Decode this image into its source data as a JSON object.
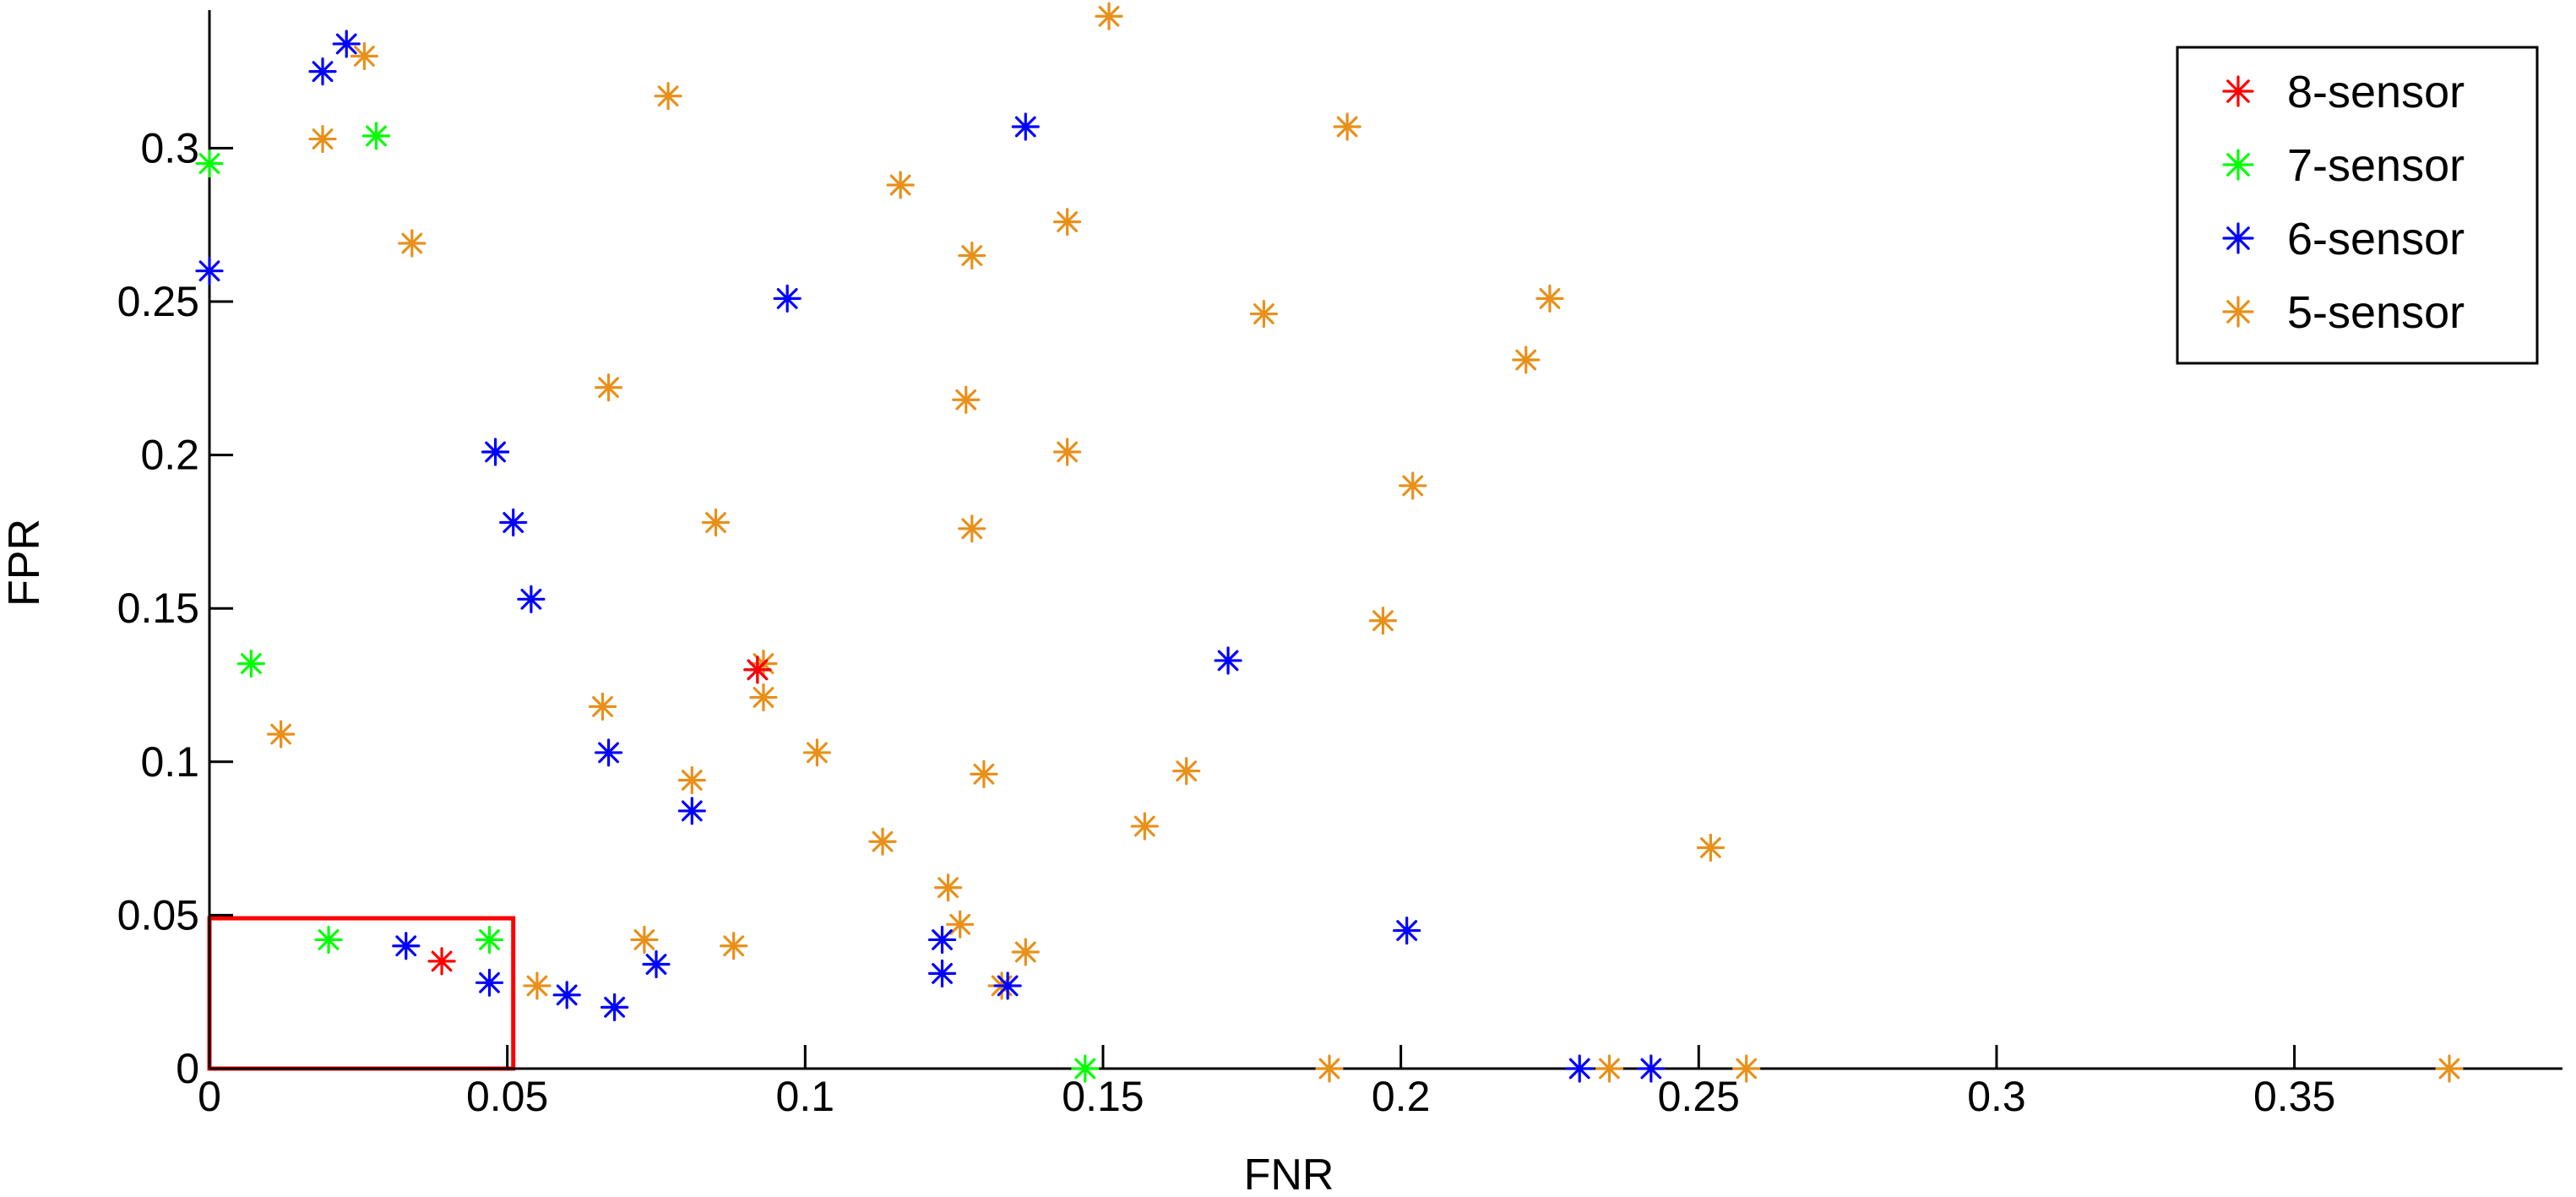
{
  "chart_data": {
    "type": "scatter",
    "title": "",
    "xlabel": "FNR",
    "ylabel": "FPR",
    "xlim": [
      0,
      0.395
    ],
    "ylim": [
      0,
      0.345
    ],
    "xticks": [
      0,
      0.05,
      0.1,
      0.15,
      0.2,
      0.25,
      0.3,
      0.35
    ],
    "xtick_labels": [
      "0",
      "0.05",
      "0.1",
      "0.15",
      "0.2",
      "0.25",
      "0.3",
      "0.35"
    ],
    "yticks": [
      0,
      0.05,
      0.1,
      0.15,
      0.2,
      0.25,
      0.3
    ],
    "ytick_labels": [
      "0",
      "0.05",
      "0.1",
      "0.15",
      "0.2",
      "0.25",
      "0.3"
    ],
    "grid": false,
    "legend_position": "top-right",
    "marker": "asterisk",
    "highlight_box": {
      "x": [
        0,
        0.051
      ],
      "y": [
        0,
        0.049
      ],
      "color": "#ff0000"
    },
    "series": [
      {
        "name": "8-sensor",
        "color": "#ff0000",
        "points": [
          [
            0.039,
            0.035
          ],
          [
            0.092,
            0.13
          ]
        ]
      },
      {
        "name": "7-sensor",
        "color": "#00ff00",
        "points": [
          [
            0.0,
            0.295
          ],
          [
            0.028,
            0.304
          ],
          [
            0.007,
            0.132
          ],
          [
            0.02,
            0.042
          ],
          [
            0.047,
            0.042
          ],
          [
            0.147,
            0.0
          ]
        ]
      },
      {
        "name": "6-sensor",
        "color": "#0000ff",
        "points": [
          [
            0.019,
            0.325
          ],
          [
            0.023,
            0.334
          ],
          [
            0.0,
            0.26
          ],
          [
            0.137,
            0.307
          ],
          [
            0.097,
            0.251
          ],
          [
            0.048,
            0.201
          ],
          [
            0.051,
            0.178
          ],
          [
            0.054,
            0.153
          ],
          [
            0.092,
            0.13
          ],
          [
            0.067,
            0.103
          ],
          [
            0.081,
            0.084
          ],
          [
            0.033,
            0.04
          ],
          [
            0.047,
            0.028
          ],
          [
            0.06,
            0.024
          ],
          [
            0.068,
            0.02
          ],
          [
            0.075,
            0.034
          ],
          [
            0.123,
            0.042
          ],
          [
            0.123,
            0.031
          ],
          [
            0.134,
            0.027
          ],
          [
            0.171,
            0.133
          ],
          [
            0.201,
            0.045
          ],
          [
            0.23,
            0.0
          ],
          [
            0.242,
            0.0
          ]
        ]
      },
      {
        "name": "5-sensor",
        "color": "#e8901a",
        "points": [
          [
            0.026,
            0.33
          ],
          [
            0.019,
            0.303
          ],
          [
            0.034,
            0.269
          ],
          [
            0.077,
            0.317
          ],
          [
            0.151,
            0.343
          ],
          [
            0.191,
            0.307
          ],
          [
            0.116,
            0.288
          ],
          [
            0.128,
            0.265
          ],
          [
            0.144,
            0.276
          ],
          [
            0.225,
            0.251
          ],
          [
            0.177,
            0.246
          ],
          [
            0.067,
            0.222
          ],
          [
            0.127,
            0.218
          ],
          [
            0.221,
            0.231
          ],
          [
            0.144,
            0.201
          ],
          [
            0.202,
            0.19
          ],
          [
            0.085,
            0.178
          ],
          [
            0.128,
            0.176
          ],
          [
            0.197,
            0.146
          ],
          [
            0.093,
            0.132
          ],
          [
            0.093,
            0.121
          ],
          [
            0.066,
            0.118
          ],
          [
            0.012,
            0.109
          ],
          [
            0.102,
            0.103
          ],
          [
            0.13,
            0.096
          ],
          [
            0.164,
            0.097
          ],
          [
            0.081,
            0.094
          ],
          [
            0.157,
            0.079
          ],
          [
            0.113,
            0.074
          ],
          [
            0.252,
            0.072
          ],
          [
            0.124,
            0.059
          ],
          [
            0.126,
            0.047
          ],
          [
            0.073,
            0.042
          ],
          [
            0.088,
            0.04
          ],
          [
            0.137,
            0.038
          ],
          [
            0.055,
            0.027
          ],
          [
            0.133,
            0.027
          ],
          [
            0.188,
            0.0
          ],
          [
            0.235,
            0.0
          ],
          [
            0.258,
            0.0
          ],
          [
            0.376,
            0.0
          ]
        ]
      }
    ]
  }
}
